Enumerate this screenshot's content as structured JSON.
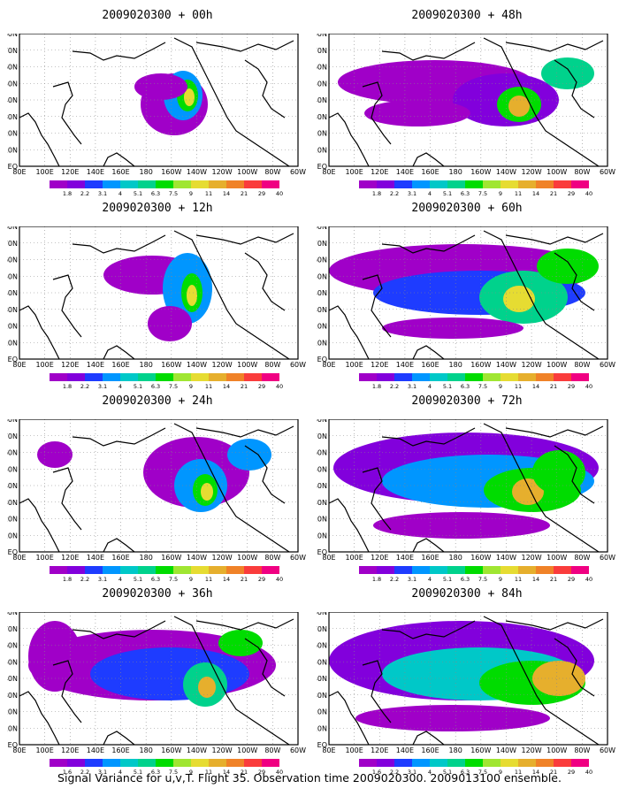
{
  "footer": "Signal Variance for u,v,T. Flight 35. Observation time 2009020300. 2009013100 ensemble.",
  "colorbar": {
    "labels": [
      "1.8",
      "2.2",
      "3.1",
      "4",
      "5.1",
      "6.3",
      "7.5",
      "9",
      "11",
      "14",
      "21",
      "29",
      "40"
    ],
    "labels_last_row": [
      "1.6",
      "2.2",
      "3.1",
      "4",
      "5.1",
      "6.3",
      "7.5",
      "9",
      "11",
      "14",
      "21",
      "29",
      "40"
    ],
    "colors": [
      "#a000c8",
      "#8200dc",
      "#1e3cff",
      "#0096ff",
      "#00c8c8",
      "#00d28c",
      "#00dc00",
      "#a0e632",
      "#e6dc32",
      "#e6af2d",
      "#f08228",
      "#fa3c3c",
      "#f00082"
    ]
  },
  "axes": {
    "x_ticks": [
      "80E",
      "100E",
      "120E",
      "140E",
      "160E",
      "180",
      "160W",
      "140W",
      "120W",
      "100W",
      "80W",
      "60W"
    ],
    "y_ticks": [
      "EQ",
      "10N",
      "20N",
      "30N",
      "40N",
      "50N",
      "60N",
      "70N",
      "80N"
    ]
  },
  "panels": [
    {
      "title": "2009020300 + 00h",
      "colorbar_labels": "labels"
    },
    {
      "title": "2009020300 + 48h",
      "colorbar_labels": "labels"
    },
    {
      "title": "2009020300 + 12h",
      "colorbar_labels": "labels"
    },
    {
      "title": "2009020300 + 60h",
      "colorbar_labels": "labels"
    },
    {
      "title": "2009020300 + 24h",
      "colorbar_labels": "labels"
    },
    {
      "title": "2009020300 + 72h",
      "colorbar_labels": "labels"
    },
    {
      "title": "2009020300 + 36h",
      "colorbar_labels": "labels_last_row"
    },
    {
      "title": "2009020300 + 84h",
      "colorbar_labels": "labels_last_row"
    }
  ]
}
